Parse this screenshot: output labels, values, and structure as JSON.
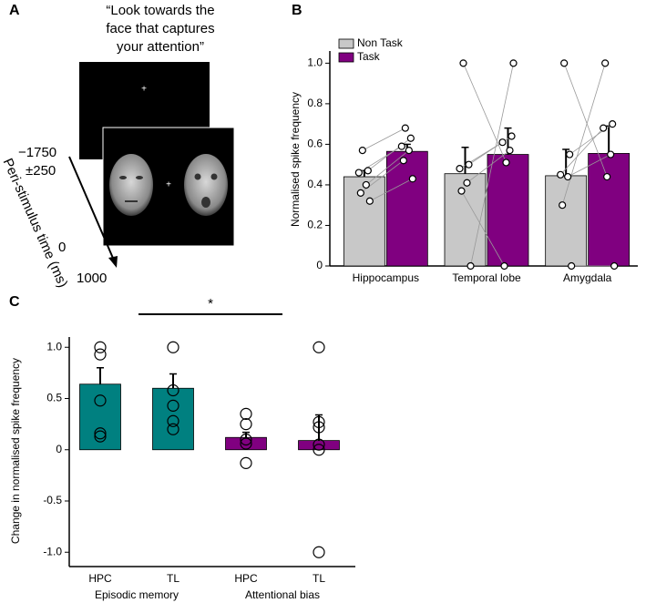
{
  "panel_labels": [
    "A",
    "B",
    "C"
  ],
  "task_diagram": {
    "instruction": [
      "“Look towards the",
      "face that captures",
      "your attention”"
    ],
    "fixation": "+",
    "time_axis_label": "Peri-stimulus time (ms)",
    "time_labels": [
      "−1750",
      "±250",
      "0",
      "1000"
    ]
  },
  "chart_data": [
    {
      "type": "bar",
      "y_label": "Normalised spike frequency",
      "categories": [
        "Hippocampus",
        "Temporal lobe",
        "Amygdala"
      ],
      "series": [
        {
          "name": "Non Task",
          "color": "#c8c8c8",
          "values": [
            0.44,
            0.455,
            0.445
          ],
          "errors": [
            0.03,
            0.13,
            0.13
          ],
          "points": [
            [
              0.57,
              0.47,
              0.46,
              0.4,
              0.36,
              0.32
            ],
            [
              1.0,
              0.5,
              0.48,
              0.41,
              0.37,
              0.0
            ],
            [
              1.0,
              0.55,
              0.45,
              0.44,
              0.3,
              0.0
            ]
          ]
        },
        {
          "name": "Task",
          "color": "#800080",
          "values": [
            0.565,
            0.55,
            0.555
          ],
          "errors": [
            0.035,
            0.13,
            0.135
          ],
          "points": [
            [
              0.68,
              0.63,
              0.59,
              0.57,
              0.52,
              0.43
            ],
            [
              0.51,
              0.64,
              0.61,
              0.57,
              0.0,
              1.0
            ],
            [
              0.44,
              0.7,
              0.68,
              0.55,
              1.0,
              0.0
            ]
          ]
        }
      ],
      "ylim": [
        0,
        1.06
      ],
      "yticks": [
        0,
        0.2,
        0.4,
        0.6,
        0.8,
        {
          "value": 1,
          "label": "1.0"
        }
      ],
      "legend": "top-left"
    },
    {
      "type": "bar",
      "y_label": "Change in normalised spike frequency",
      "categories": [
        "HPC",
        "TL",
        "HPC",
        "TL"
      ],
      "groups": [
        "Episodic memory",
        "Attentional bias"
      ],
      "values": [
        0.64,
        0.6,
        0.12,
        0.09
      ],
      "errors": [
        0.16,
        0.14,
        0.05,
        0.25
      ],
      "colors": [
        "#008080",
        "#008080",
        "#800080",
        "#800080"
      ],
      "points": [
        [
          1.0,
          0.93,
          0.48,
          0.16,
          0.13
        ],
        [
          1.0,
          0.58,
          0.43,
          0.28,
          0.2
        ],
        [
          0.35,
          0.25,
          0.1,
          0.06,
          -0.13
        ],
        [
          1.0,
          0.27,
          0.22,
          0.05,
          0.0,
          -1.0
        ]
      ],
      "annotation": "*",
      "ylim": [
        -1.14,
        1.1
      ],
      "yticks": [
        {
          "value": 1,
          "label": "1.0"
        },
        0.5,
        0,
        -0.5,
        {
          "value": -1,
          "label": "-1.0"
        }
      ]
    }
  ]
}
